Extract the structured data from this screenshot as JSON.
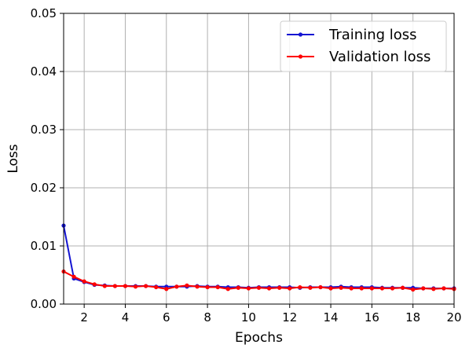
{
  "chart_data": {
    "type": "line",
    "title": "",
    "xlabel": "Epochs",
    "ylabel": "Loss",
    "xlim": [
      1,
      20
    ],
    "ylim": [
      0.0,
      0.05
    ],
    "xticks": [
      2,
      4,
      6,
      8,
      10,
      12,
      14,
      16,
      18,
      20
    ],
    "xtick_labels": [
      "2",
      "4",
      "6",
      "8",
      "10",
      "12",
      "14",
      "16",
      "18",
      "20"
    ],
    "yticks": [
      0.0,
      0.01,
      0.02,
      0.03,
      0.04,
      0.05
    ],
    "ytick_labels": [
      "0.00",
      "0.01",
      "0.02",
      "0.03",
      "0.04",
      "0.05"
    ],
    "grid": true,
    "legend_position": "top-right",
    "series": [
      {
        "name": "Training loss",
        "color": "#1414d2",
        "marker": "dot",
        "x": [
          1,
          1.5,
          2,
          2.5,
          3,
          3.5,
          4,
          4.5,
          5,
          5.5,
          6,
          6.5,
          7,
          7.5,
          8,
          8.5,
          9,
          9.5,
          10,
          10.5,
          11,
          11.5,
          12,
          12.5,
          13,
          13.5,
          14,
          14.5,
          15,
          15.5,
          16,
          16.5,
          17,
          17.5,
          18,
          18.5,
          19,
          19.5,
          20
        ],
        "values": [
          0.0135,
          0.0044,
          0.0038,
          0.0033,
          0.0032,
          0.0031,
          0.0031,
          0.0031,
          0.0031,
          0.003,
          0.003,
          0.003,
          0.003,
          0.0031,
          0.003,
          0.003,
          0.0029,
          0.0029,
          0.0028,
          0.0029,
          0.0029,
          0.0029,
          0.0029,
          0.0028,
          0.0029,
          0.0029,
          0.0029,
          0.003,
          0.0029,
          0.0029,
          0.0029,
          0.0028,
          0.0028,
          0.0028,
          0.0028,
          0.0027,
          0.0027,
          0.0027,
          0.0027
        ]
      },
      {
        "name": "Validation loss",
        "color": "#ff0000",
        "marker": "dot",
        "x": [
          1,
          1.5,
          2,
          2.5,
          3,
          3.5,
          4,
          4.5,
          5,
          5.5,
          6,
          6.5,
          7,
          7.5,
          8,
          8.5,
          9,
          9.5,
          10,
          10.5,
          11,
          11.5,
          12,
          12.5,
          13,
          13.5,
          14,
          14.5,
          15,
          15.5,
          16,
          16.5,
          17,
          17.5,
          18,
          18.5,
          19,
          19.5,
          20
        ],
        "values": [
          0.0056,
          0.0047,
          0.0039,
          0.0034,
          0.0031,
          0.0031,
          0.0031,
          0.003,
          0.0031,
          0.0029,
          0.0026,
          0.003,
          0.0032,
          0.003,
          0.0029,
          0.0029,
          0.0026,
          0.0028,
          0.0027,
          0.0028,
          0.0027,
          0.0028,
          0.0027,
          0.0029,
          0.0028,
          0.0029,
          0.0027,
          0.0028,
          0.0027,
          0.0027,
          0.0027,
          0.0027,
          0.0027,
          0.0028,
          0.0025,
          0.0027,
          0.0026,
          0.0027,
          0.0026
        ]
      }
    ]
  }
}
